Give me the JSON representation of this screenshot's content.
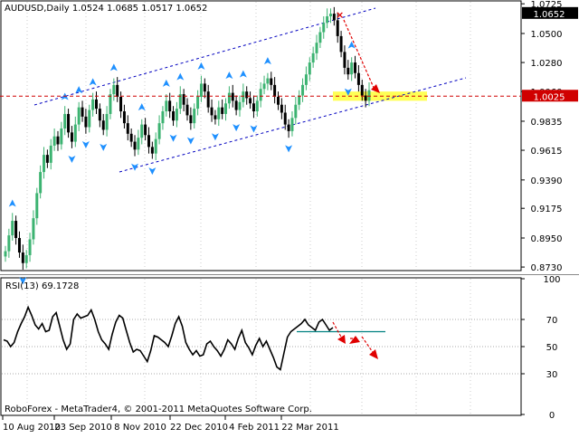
{
  "chart_data": [
    {
      "type": "candlestick",
      "header": {
        "symbol": "AUDUSD,Daily",
        "open": "1.0524",
        "high": "1.0685",
        "low": "1.0517",
        "close": "1.0652"
      },
      "y_ticks": [
        "1.0725",
        "1.0500",
        "1.0280",
        "1.0060",
        "0.9835",
        "0.9615",
        "0.9390",
        "0.9175",
        "0.8950",
        "0.8730"
      ],
      "ylim": [
        0.871,
        1.074
      ],
      "price_tags": [
        {
          "label": "1.0652",
          "value": 1.0652
        },
        {
          "label": "1.0025",
          "value": 1.0025
        }
      ],
      "series_close": [
        0.885,
        0.897,
        0.908,
        0.895,
        0.884,
        0.876,
        0.882,
        0.894,
        0.91,
        0.929,
        0.945,
        0.958,
        0.952,
        0.965,
        0.972,
        0.966,
        0.978,
        0.989,
        0.975,
        0.968,
        0.981,
        0.994,
        0.987,
        0.979,
        0.992,
        1.0,
        0.993,
        0.984,
        0.977,
        0.989,
        1.004,
        1.011,
        1.002,
        0.991,
        0.982,
        0.974,
        0.968,
        0.962,
        0.971,
        0.981,
        0.973,
        0.964,
        0.959,
        0.97,
        0.982,
        0.991,
        0.999,
        0.991,
        0.984,
        0.993,
        1.004,
        0.996,
        0.988,
        0.982,
        0.993,
        1.002,
        1.012,
        1.006,
        0.994,
        0.988,
        0.985,
        0.994,
        0.989,
        0.997,
        1.005,
        0.999,
        0.992,
        0.998,
        1.006,
        1.001,
        0.997,
        0.991,
        0.999,
        1.008,
        1.012,
        1.016,
        1.011,
        1.002,
        0.996,
        0.99,
        0.981,
        0.976,
        0.986,
        0.996,
        1.003,
        1.011,
        1.019,
        1.028,
        1.035,
        1.043,
        1.051,
        1.058,
        1.063,
        1.065,
        1.06,
        1.048,
        1.036,
        1.024,
        1.019,
        1.028,
        1.02,
        1.011,
        1.003,
        0.999,
        1.007
      ],
      "bands": [
        {
          "y": 1.0025,
          "x_from": 0.0,
          "x_to": 1.0,
          "style": "dashed",
          "color": "#d00000"
        }
      ],
      "highlight_zone": {
        "value_low": 0.999,
        "value_high": 1.006,
        "color": "#ffff55"
      },
      "fractal_color": "#1e90ff",
      "colors": {
        "up": "#3cb371",
        "down": "#000000",
        "channel": "#0000c0",
        "arrow": "#e00000"
      }
    },
    {
      "type": "line",
      "title": "RSI(13) 69.1728",
      "y_ticks": [
        "100",
        "70",
        "50",
        "30",
        "0"
      ],
      "ylim": [
        0,
        100
      ],
      "levels": [
        70,
        50,
        30
      ],
      "values": [
        55,
        54,
        50,
        53,
        61,
        67,
        72,
        79,
        73,
        66,
        63,
        67,
        61,
        62,
        72,
        75,
        65,
        55,
        48,
        52,
        70,
        74,
        71,
        72,
        73,
        77,
        70,
        61,
        55,
        52,
        48,
        59,
        68,
        73,
        71,
        62,
        53,
        46,
        48,
        47,
        43,
        39,
        47,
        58,
        57,
        55,
        53,
        50,
        58,
        67,
        72,
        65,
        53,
        48,
        44,
        47,
        43,
        44,
        52,
        54,
        50,
        47,
        43,
        48,
        55,
        52,
        48,
        56,
        62,
        53,
        49,
        44,
        51,
        56,
        50,
        54,
        48,
        42,
        35,
        33,
        45,
        57,
        61,
        63,
        65,
        67,
        70,
        66,
        64,
        62,
        68,
        70,
        66,
        62,
        64
      ],
      "flat_level": 61,
      "footer": "RoboForex - MetaTrader4, © 2001-2011 MetaQuotes Software Corp."
    }
  ],
  "x_ticks": [
    "10 Aug 2010",
    "23 Sep 2010",
    "8 Nov 2010",
    "22 Dec 2010",
    "4 Feb 2011",
    "22 Mar 2011"
  ]
}
